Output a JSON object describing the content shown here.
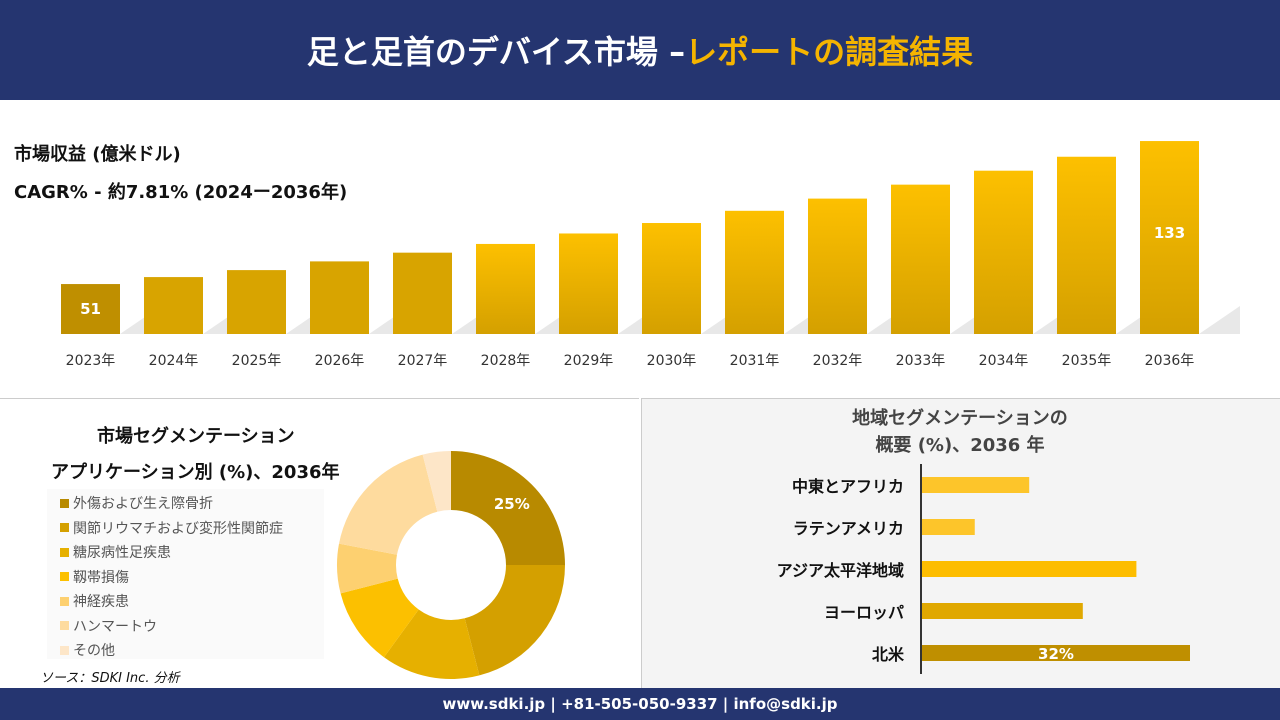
{
  "header": {
    "title_main": "足と足首のデバイス市場 –",
    "title_highlight": "レポートの調査結果"
  },
  "revenue": {
    "label": "市場収益 (億米ドル)",
    "cagr": "CAGR% - 約7.81% (2024ー2036年)"
  },
  "chart_data": [
    {
      "type": "bar",
      "categories": [
        "2023年",
        "2024年",
        "2025年",
        "2026年",
        "2027年",
        "2028年",
        "2029年",
        "2030年",
        "2031年",
        "2032年",
        "2033年",
        "2034年",
        "2035年",
        "2036年"
      ],
      "values": [
        51,
        55,
        59,
        64,
        69,
        74,
        80,
        86,
        93,
        100,
        108,
        116,
        124,
        133
      ],
      "data_labels": {
        "0": "51",
        "13": "133"
      },
      "ylabel": "市場収益 (億米ドル)"
    },
    {
      "type": "pie",
      "title": "市場セグメンテーション アプリケーション別 (%)、2036年",
      "labels": [
        "外傷および生え際骨折",
        "関節リウマチおよび変形性関節症",
        "糖尿病性足疾患",
        "靱帯損傷",
        "神経疾患",
        "ハンマートウ",
        "その他"
      ],
      "values": [
        25,
        21,
        14,
        11,
        7,
        18,
        4
      ],
      "colors": [
        "#b88a00",
        "#d4a000",
        "#e6b000",
        "#fcc000",
        "#fdd070",
        "#fedb9e",
        "#fde6c8"
      ],
      "data_labels": {
        "0": "25%"
      }
    },
    {
      "type": "bar",
      "orientation": "horizontal",
      "title": "地域セグメンテーションの概要 (%)、2036 年",
      "categories": [
        "中東とアフリカ",
        "ラテンアメリカ",
        "アジア太平洋地域",
        "ヨーロッパ",
        "北米"
      ],
      "values": [
        12.8,
        6.3,
        25.6,
        19.2,
        32
      ],
      "colors": [
        "#fdc52a",
        "#fdc52a",
        "#fdbd00",
        "#e0a800",
        "#bf8f00"
      ],
      "data_labels": {
        "4": "32%"
      }
    }
  ],
  "segment": {
    "title1": "市場セグメンテーション",
    "title2": "アプリケーション別 (%)、2036年"
  },
  "region": {
    "title1": "地域セグメンテーションの",
    "title2": "概要 (%)、2036 年"
  },
  "source": "ソース：SDKI Inc. 分析",
  "footer": "www.sdki.jp | +81-505-050-9337 | info@sdki.jp"
}
